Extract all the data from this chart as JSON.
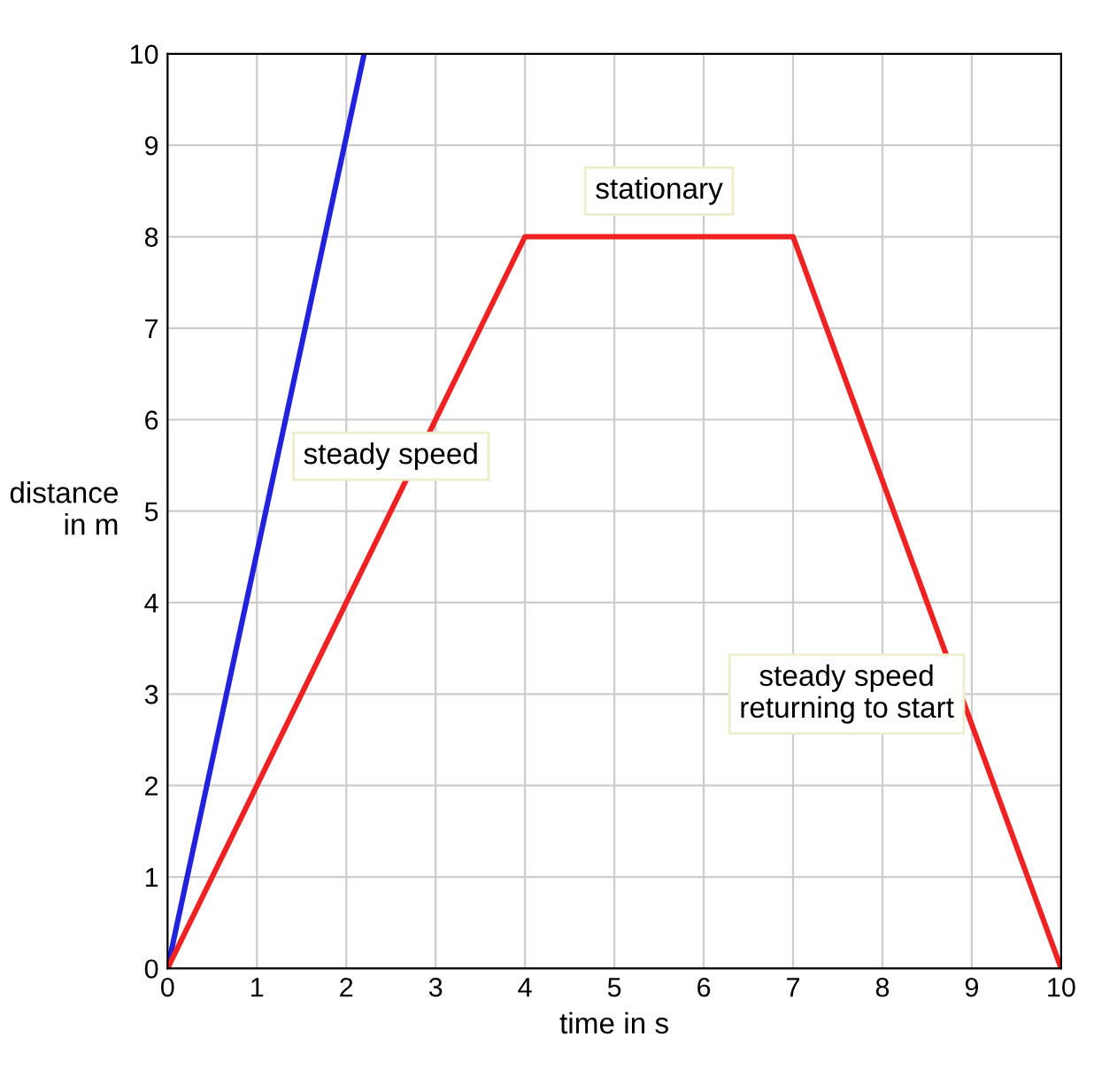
{
  "chart_data": {
    "type": "line",
    "xlabel": "time in s",
    "ylabel": "distance\nin m",
    "xlim": [
      0,
      10
    ],
    "ylim": [
      0,
      10
    ],
    "xticks": [
      0,
      1,
      2,
      3,
      4,
      5,
      6,
      7,
      8,
      9,
      10
    ],
    "yticks": [
      0,
      1,
      2,
      3,
      4,
      5,
      6,
      7,
      8,
      9,
      10
    ],
    "grid": true,
    "marker": "none",
    "line_style": "solid",
    "series": [
      {
        "color": "#2222dd",
        "x": [
          0,
          2.2
        ],
        "values": [
          0,
          10
        ]
      },
      {
        "color": "#ee2222",
        "x": [
          0,
          4,
          7,
          10
        ],
        "values": [
          0,
          8,
          8,
          0
        ]
      }
    ],
    "annotations": [
      "stationary",
      "steady speed",
      "steady speed\nreturning to start"
    ]
  }
}
